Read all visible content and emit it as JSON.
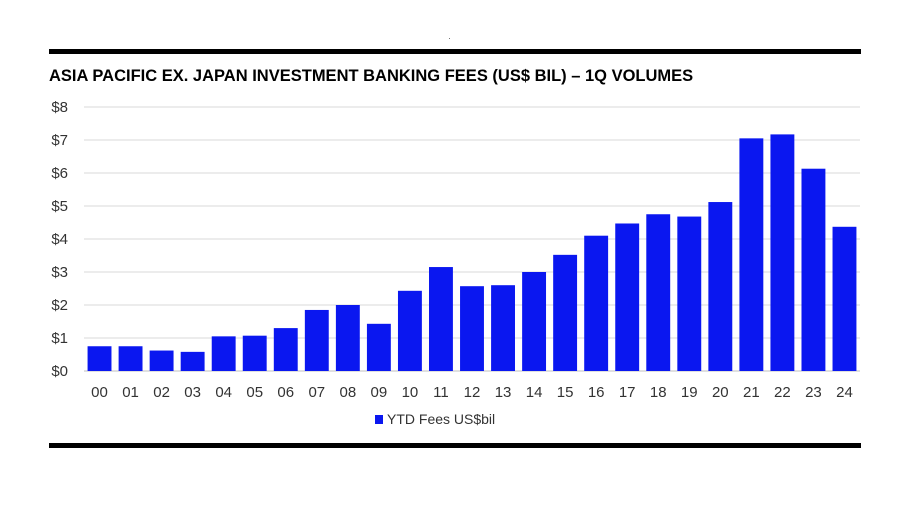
{
  "chart_data": {
    "type": "bar",
    "title": "ASIA PACIFIC EX. JAPAN INVESTMENT BANKING FEES (US$ BIL) – 1Q VOLUMES",
    "categories": [
      "00",
      "01",
      "02",
      "03",
      "04",
      "05",
      "06",
      "07",
      "08",
      "09",
      "10",
      "11",
      "12",
      "13",
      "14",
      "15",
      "16",
      "17",
      "18",
      "19",
      "20",
      "21",
      "22",
      "23",
      "24"
    ],
    "series": [
      {
        "name": "YTD Fees US$bil",
        "values": [
          0.75,
          0.75,
          0.62,
          0.58,
          1.05,
          1.07,
          1.3,
          1.85,
          2.0,
          1.43,
          2.43,
          3.15,
          2.57,
          2.6,
          3.0,
          3.52,
          4.1,
          4.47,
          4.75,
          4.68,
          5.12,
          7.05,
          7.17,
          6.13,
          4.37
        ]
      }
    ],
    "y_ticks": [
      "$0",
      "$1",
      "$2",
      "$3",
      "$4",
      "$5",
      "$6",
      "$7",
      "$8"
    ],
    "ylim": [
      0,
      8
    ],
    "grid": true,
    "legend": "bottom",
    "bar_color": "#0a17f0"
  }
}
